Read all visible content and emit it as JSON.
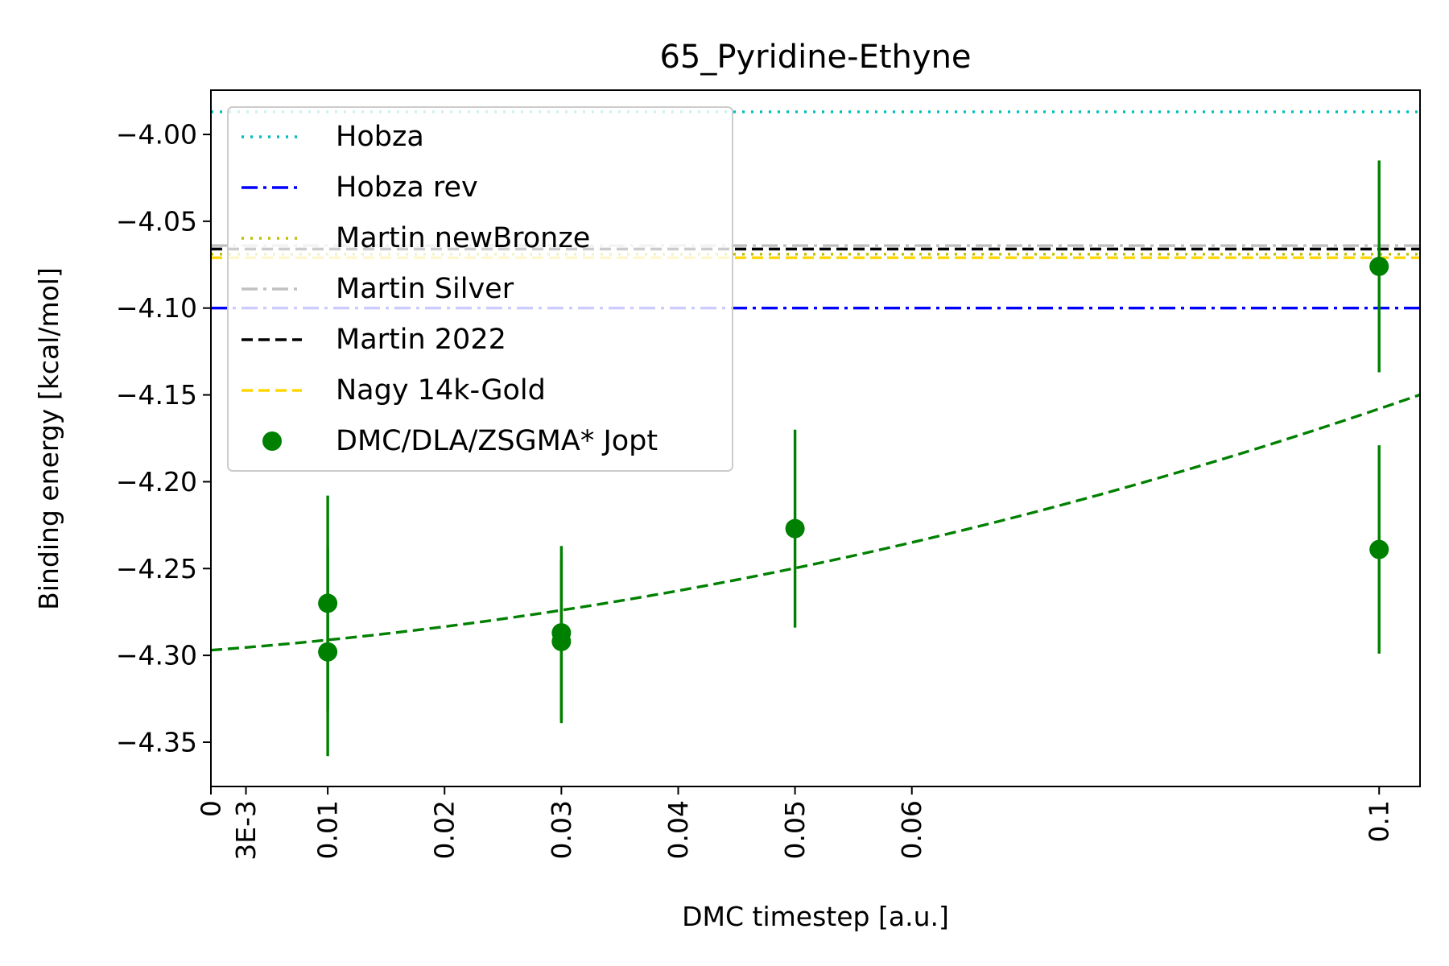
{
  "chart_data": {
    "type": "scatter",
    "title": "65_Pyridine-Ethyne",
    "xlabel": "DMC timestep [a.u.]",
    "ylabel": "Binding energy [kcal/mol]",
    "xlim": [
      0,
      0.1035
    ],
    "ylim": [
      -4.3755,
      -3.9745
    ],
    "x_ticks": [
      {
        "value": 0,
        "label": "0"
      },
      {
        "value": 0.003,
        "label": "3E-3"
      },
      {
        "value": 0.01,
        "label": "0.01"
      },
      {
        "value": 0.02,
        "label": "0.02"
      },
      {
        "value": 0.03,
        "label": "0.03"
      },
      {
        "value": 0.04,
        "label": "0.04"
      },
      {
        "value": 0.05,
        "label": "0.05"
      },
      {
        "value": 0.06,
        "label": "0.06"
      },
      {
        "value": 0.1,
        "label": "0.1"
      }
    ],
    "y_ticks": [
      {
        "value": -4.0,
        "label": "−4.00"
      },
      {
        "value": -4.05,
        "label": "−4.05"
      },
      {
        "value": -4.1,
        "label": "−4.10"
      },
      {
        "value": -4.15,
        "label": "−4.15"
      },
      {
        "value": -4.2,
        "label": "−4.20"
      },
      {
        "value": -4.25,
        "label": "−4.25"
      },
      {
        "value": -4.3,
        "label": "−4.30"
      },
      {
        "value": -4.35,
        "label": "−4.35"
      }
    ],
    "reference_lines": [
      {
        "name": "Hobza",
        "y": -3.987,
        "color": "#00bfbf",
        "dash": "dotted"
      },
      {
        "name": "Hobza rev",
        "y": -4.1,
        "color": "#0000ff",
        "dash": "dashdot"
      },
      {
        "name": "Martin newBronze",
        "y": -4.069,
        "color": "#bfbf00",
        "dash": "dotted"
      },
      {
        "name": "Martin Silver",
        "y": -4.064,
        "color": "#c0c0c0",
        "dash": "dashdot"
      },
      {
        "name": "Martin 2022",
        "y": -4.066,
        "color": "#000000",
        "dash": "dashed"
      },
      {
        "name": "Nagy 14k-Gold",
        "y": -4.071,
        "color": "#ffd700",
        "dash": "dashed"
      }
    ],
    "series": [
      {
        "name": "DMC/DLA/ZSGMA* Jopt",
        "color": "#008000",
        "points": [
          {
            "x": 0.01,
            "y": -4.27,
            "err": 0.062
          },
          {
            "x": 0.01,
            "y": -4.298,
            "err": 0.06
          },
          {
            "x": 0.03,
            "y": -4.287,
            "err": 0.05
          },
          {
            "x": 0.03,
            "y": -4.292,
            "err": 0.047
          },
          {
            "x": 0.05,
            "y": -4.227,
            "err": 0.057
          },
          {
            "x": 0.1,
            "y": -4.076,
            "err": 0.061
          },
          {
            "x": 0.1,
            "y": -4.239,
            "err": 0.06
          }
        ]
      }
    ],
    "fit": {
      "color": "#008000",
      "dash": "dashed",
      "function": "quadratic",
      "coefficients": {
        "a": -4.297,
        "b": 0.5,
        "c": 8.9
      }
    },
    "legend": {
      "position": "top-left"
    }
  }
}
